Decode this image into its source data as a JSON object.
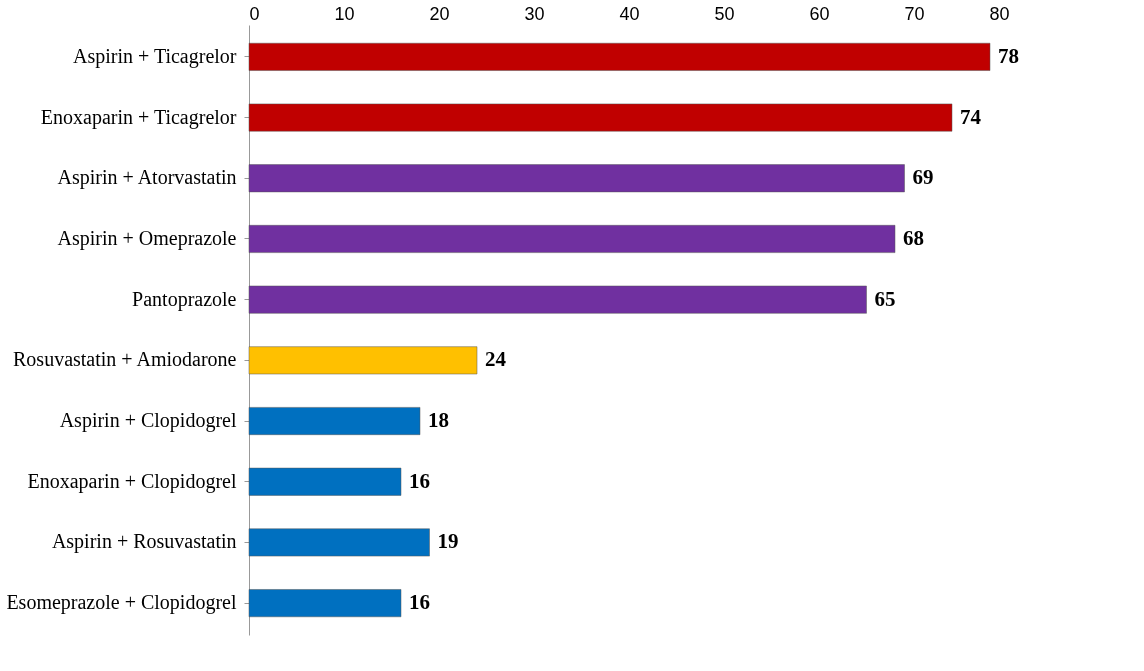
{
  "chart_data": {
    "type": "bar",
    "orientation": "horizontal",
    "categories": [
      "Aspirin + Ticagrelor",
      "Enoxaparin + Ticagrelor",
      "Aspirin + Atorvastatin",
      "Aspirin + Omeprazole",
      "Pantoprazole",
      "Rosuvastatin + Amiodarone",
      "Aspirin + Clopidogrel",
      "Enoxaparin + Clopidogrel",
      "Aspirin + Rosuvastatin",
      "Esomeprazole + Clopidogrel"
    ],
    "values": [
      78,
      74,
      69,
      68,
      65,
      24,
      18,
      16,
      19,
      16
    ],
    "colors": [
      "#c00000",
      "#c00000",
      "#7030a0",
      "#7030a0",
      "#7030a0",
      "#ffc000",
      "#0070c0",
      "#0070c0",
      "#0070c0",
      "#0070c0"
    ],
    "xlim": [
      0,
      80
    ],
    "xticks": [
      0,
      10,
      20,
      30,
      40,
      50,
      60,
      70,
      80
    ],
    "data_labels": true,
    "grid": false,
    "legend": false
  }
}
